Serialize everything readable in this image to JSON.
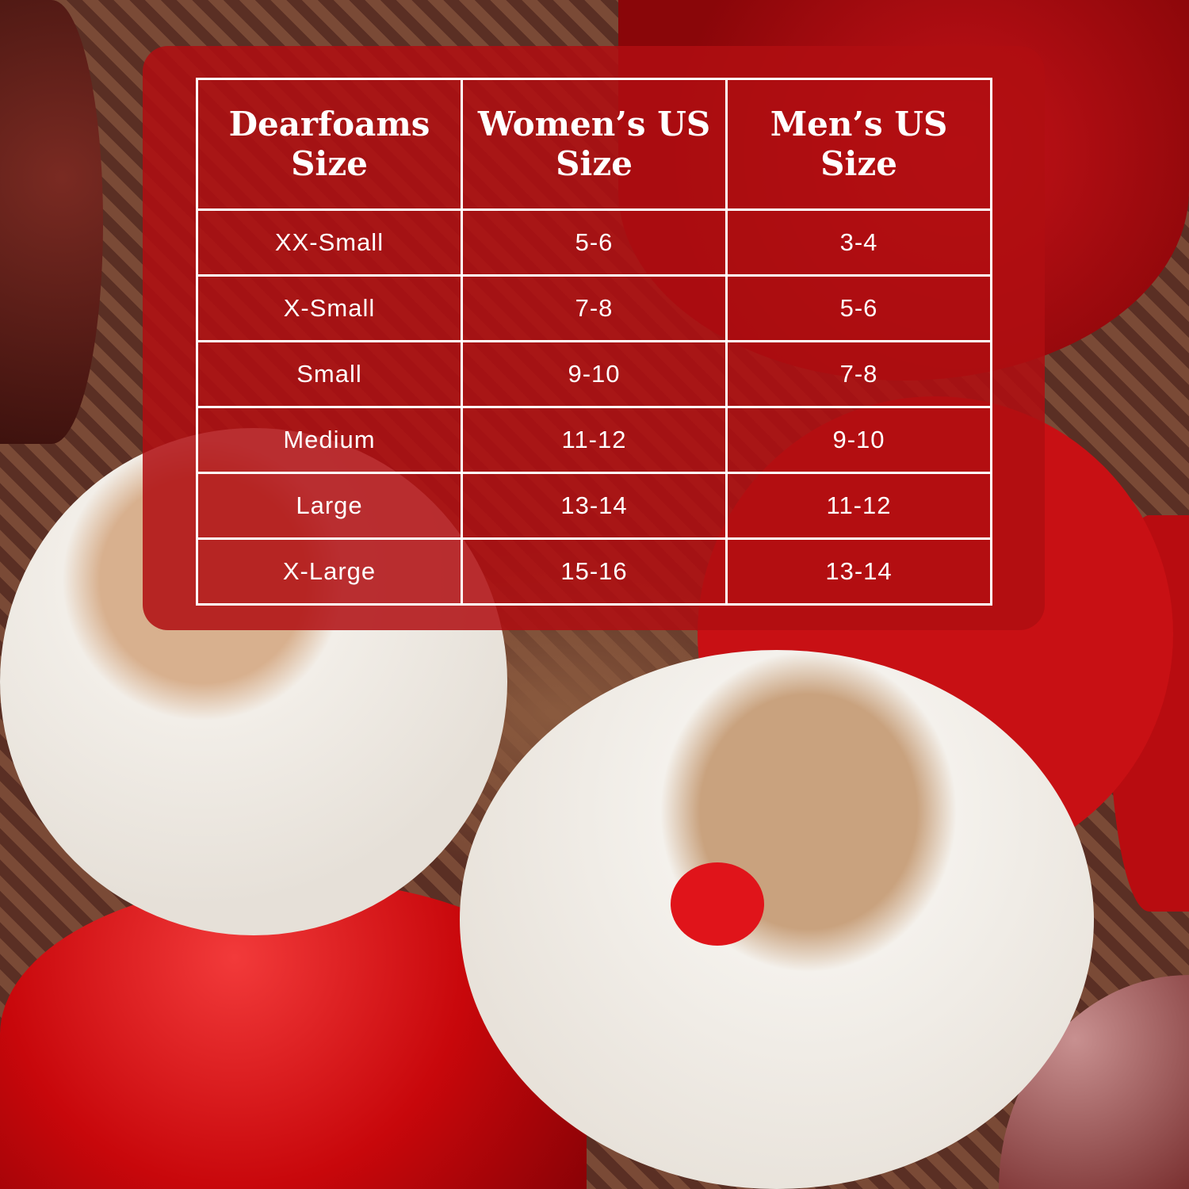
{
  "size_chart": {
    "headers": [
      "Dearfoams Size",
      "Women’s US Size",
      "Men’s US Size"
    ],
    "rows": [
      [
        "XX-Small",
        "5-6",
        "3-4"
      ],
      [
        "X-Small",
        "7-8",
        "5-6"
      ],
      [
        "Small",
        "9-10",
        "7-8"
      ],
      [
        "Medium",
        "11-12",
        "9-10"
      ],
      [
        "Large",
        "13-14",
        "11-12"
      ],
      [
        "X-Large",
        "15-16",
        "13-14"
      ]
    ]
  },
  "colors": {
    "panel": "#b00e12",
    "text": "#ffffff"
  }
}
